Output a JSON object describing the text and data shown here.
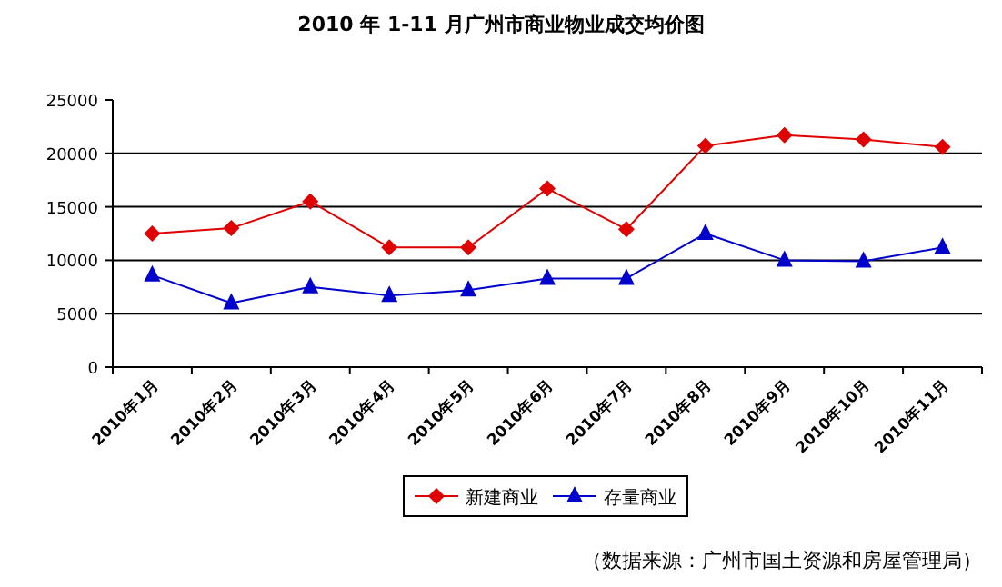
{
  "chart_data": {
    "type": "line",
    "title": "2010 年 1-11 月广州市商业物业成交均价图",
    "categories": [
      "2010年1月",
      "2010年2月",
      "2010年3月",
      "2010年4月",
      "2010年5月",
      "2010年6月",
      "2010年7月",
      "2010年8月",
      "2010年9月",
      "2010年10月",
      "2010年11月"
    ],
    "series": [
      {
        "name": "新建商业",
        "color": "#e00000",
        "marker": "diamond",
        "values": [
          12500,
          13000,
          15500,
          11200,
          11200,
          16700,
          12900,
          20700,
          21700,
          21300,
          20600
        ]
      },
      {
        "name": "存量商业",
        "color": "#0000cc",
        "marker": "triangle",
        "values": [
          8600,
          6000,
          7500,
          6700,
          7200,
          8300,
          8300,
          12500,
          10000,
          9900,
          11200
        ]
      }
    ],
    "ylim": [
      0,
      25000
    ],
    "yticks": [
      0,
      5000,
      10000,
      15000,
      20000,
      25000
    ],
    "grid": "y",
    "legend": "bottom",
    "annotations": [
      "（数据来源：广州市国土资源和房屋管理局）"
    ]
  }
}
